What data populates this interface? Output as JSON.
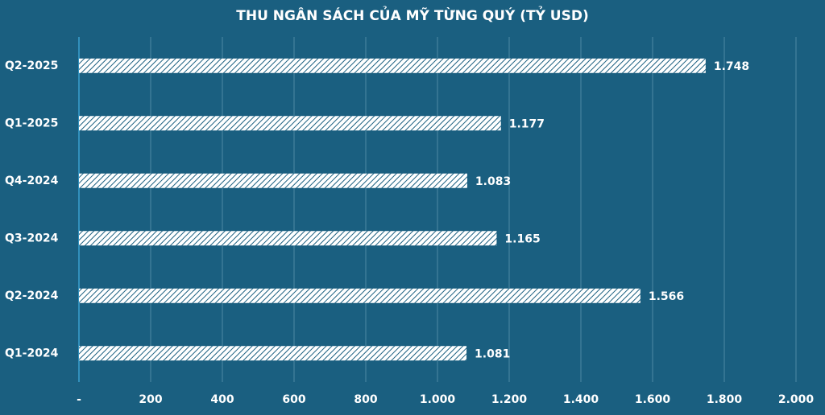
{
  "chart_data": {
    "type": "hbar",
    "title": "THU NGÂN SÁCH CỦA MỸ TỪNG QUÝ (TỶ USD)",
    "categories": [
      "Q2-2025",
      "Q1-2025",
      "Q4-2024",
      "Q3-2024",
      "Q2-2024",
      "Q1-2024"
    ],
    "values": [
      1748,
      1177,
      1083,
      1165,
      1566,
      1081
    ],
    "value_labels": [
      "1.748",
      "1.177",
      "1.083",
      "1.165",
      "1.566",
      "1.081"
    ],
    "color": "#ffffff",
    "xlim": [
      0,
      2000
    ],
    "xticks": [
      {
        "value": 0,
        "label": "-"
      },
      200,
      400,
      600,
      800,
      {
        "value": 1000,
        "label": "1.000"
      },
      {
        "value": 1200,
        "label": "1.200"
      },
      {
        "value": 1400,
        "label": "1.400"
      },
      {
        "value": 1600,
        "label": "1.600"
      },
      {
        "value": 1800,
        "label": "1.800"
      },
      {
        "value": 2000,
        "label": "2.000"
      }
    ],
    "grid": true
  }
}
